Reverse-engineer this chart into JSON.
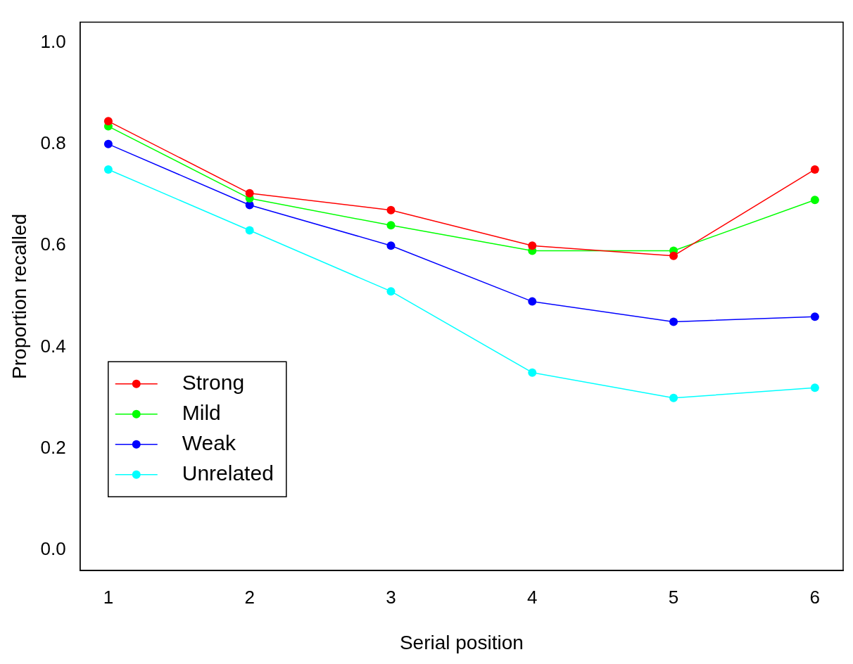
{
  "chart_data": {
    "type": "line",
    "xlabel": "Serial position",
    "ylabel": "Proportion recalled",
    "x": [
      1,
      2,
      3,
      4,
      5,
      6
    ],
    "series": [
      {
        "name": "Strong",
        "color": "#ff0000",
        "values": [
          0.845,
          0.703,
          0.67,
          0.6,
          0.58,
          0.75
        ]
      },
      {
        "name": "Mild",
        "color": "#00ff00",
        "values": [
          0.835,
          0.693,
          0.64,
          0.59,
          0.59,
          0.69
        ]
      },
      {
        "name": "Weak",
        "color": "#0000ff",
        "values": [
          0.8,
          0.68,
          0.6,
          0.49,
          0.45,
          0.46
        ]
      },
      {
        "name": "Unrelated",
        "color": "#00ffff",
        "values": [
          0.75,
          0.63,
          0.51,
          0.35,
          0.3,
          0.32
        ]
      }
    ],
    "xlim": [
      0.8,
      6.2
    ],
    "xticks": [
      1,
      2,
      3,
      4,
      5,
      6
    ],
    "ylim": [
      -0.04,
      1.04
    ],
    "yticks": [
      {
        "value": 0,
        "label": "0.0"
      },
      {
        "value": 0.2,
        "label": "0.2"
      },
      {
        "value": 0.4,
        "label": "0.4"
      },
      {
        "value": 0.6,
        "label": "0.6"
      },
      {
        "value": 0.8,
        "label": "0.8"
      },
      {
        "value": 1,
        "label": "1.0"
      }
    ],
    "legend": "bottom left",
    "marker": "circle",
    "line_style": "solid",
    "grid": false
  }
}
